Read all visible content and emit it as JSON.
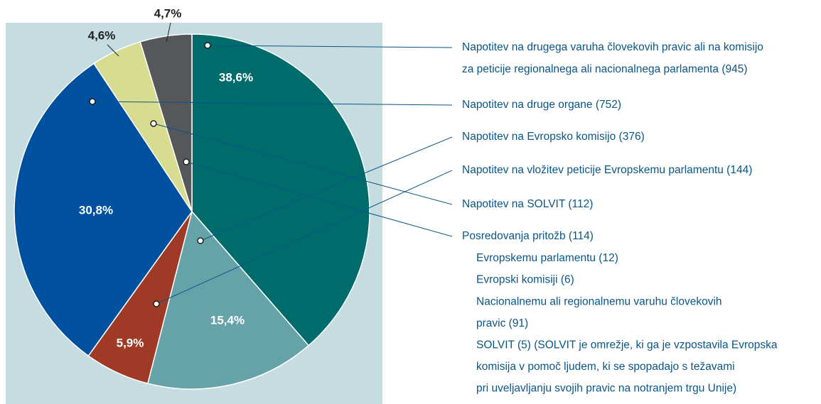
{
  "chart_data": {
    "type": "pie",
    "values": [
      38.6,
      15.4,
      5.9,
      30.8,
      4.6,
      4.7
    ],
    "value_labels": [
      "38,6%",
      "15,4%",
      "5,9%",
      "30,8%",
      "4,6%",
      "4,7%"
    ],
    "colors": [
      "#006b6b",
      "#66a3a8",
      "#9e3a26",
      "#0050a0",
      "#d8dc90",
      "#555759"
    ],
    "categories": [
      [
        "Napotitev na drugega varuha človekovih pravic ali na komisijo",
        "za peticije regionalnega ali nacionalnega parlamenta (945)"
      ],
      [
        "Napotitev na Evropsko komisijo (376)"
      ],
      [
        "Napotitev na vložitev peticije Evropskemu parlamentu (144)"
      ],
      [
        "Napotitev na druge organe (752)"
      ],
      [
        "Napotitev na SOLVIT (112)"
      ],
      [
        "Posredovanja pritožb (114)"
      ]
    ],
    "sub_labels": [
      [
        "Evropskemu parlamentu (12)"
      ],
      [
        "Evropski komisiji (6)"
      ],
      [
        "Nacionalnemu ali regionalnemu varuhu človekovih",
        "pravic (91)"
      ],
      [
        "SOLVIT (5) (SOLVIT je omrežje, ki ga je vzpostavila Evropska",
        "komisija v pomoč ljudem, ki se spopadajo s težavami",
        "pri uveljavljanju svojih pravic na notranjem trgu Unije)"
      ]
    ]
  }
}
